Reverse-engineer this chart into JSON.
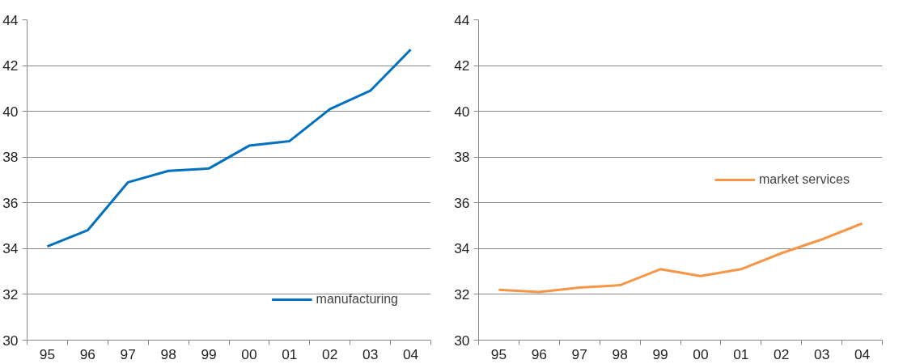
{
  "chart_data": [
    {
      "type": "line",
      "categories": [
        "95",
        "96",
        "97",
        "98",
        "99",
        "00",
        "01",
        "02",
        "03",
        "04"
      ],
      "ylim": [
        30,
        44
      ],
      "yticks": [
        30,
        32,
        34,
        36,
        38,
        40,
        42,
        44
      ],
      "grid": "y",
      "legend": "bottom right",
      "marker": "none",
      "series": [
        {
          "name": "manufacturing",
          "color": "#0070c0",
          "values": [
            34.1,
            34.8,
            36.9,
            37.4,
            37.5,
            38.5,
            38.7,
            40.1,
            40.9,
            42.7
          ]
        }
      ]
    },
    {
      "type": "line",
      "categories": [
        "95",
        "96",
        "97",
        "98",
        "99",
        "00",
        "01",
        "02",
        "03",
        "04"
      ],
      "ylim": [
        30,
        44
      ],
      "yticks": [
        30,
        32,
        34,
        36,
        38,
        40,
        42,
        44
      ],
      "grid": "y",
      "legend": "right",
      "marker": "none",
      "series": [
        {
          "name": "market services",
          "color": "#f79646",
          "values": [
            32.2,
            32.1,
            32.3,
            32.4,
            33.1,
            32.8,
            33.1,
            33.8,
            34.4,
            35.1
          ]
        }
      ]
    }
  ]
}
